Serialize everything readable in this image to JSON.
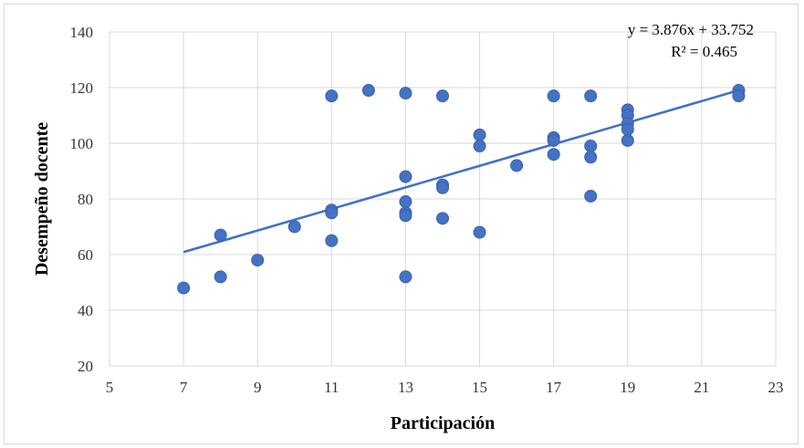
{
  "chart_data": {
    "type": "scatter",
    "title": "",
    "xlabel": "Participación",
    "ylabel": "Desempeño docente",
    "xlim": [
      5,
      23
    ],
    "ylim": [
      20,
      140
    ],
    "xticks": [
      5,
      7,
      9,
      11,
      13,
      15,
      17,
      19,
      21,
      23
    ],
    "yticks": [
      20,
      40,
      60,
      80,
      100,
      120,
      140
    ],
    "grid": "vertical-and-horizontal",
    "colors": {
      "points": "#4472c4",
      "trendline": "#4472c4",
      "grid": "#d9d9d9"
    },
    "points": [
      {
        "x": 7,
        "y": 48
      },
      {
        "x": 8,
        "y": 67
      },
      {
        "x": 8,
        "y": 52
      },
      {
        "x": 9,
        "y": 58
      },
      {
        "x": 10,
        "y": 70
      },
      {
        "x": 11,
        "y": 117
      },
      {
        "x": 11,
        "y": 76
      },
      {
        "x": 11,
        "y": 75
      },
      {
        "x": 11,
        "y": 65
      },
      {
        "x": 12,
        "y": 119
      },
      {
        "x": 13,
        "y": 118
      },
      {
        "x": 13,
        "y": 88
      },
      {
        "x": 13,
        "y": 79
      },
      {
        "x": 13,
        "y": 75
      },
      {
        "x": 13,
        "y": 74
      },
      {
        "x": 13,
        "y": 52
      },
      {
        "x": 14,
        "y": 117
      },
      {
        "x": 14,
        "y": 85
      },
      {
        "x": 14,
        "y": 84
      },
      {
        "x": 14,
        "y": 73
      },
      {
        "x": 15,
        "y": 103
      },
      {
        "x": 15,
        "y": 99
      },
      {
        "x": 15,
        "y": 68
      },
      {
        "x": 16,
        "y": 92
      },
      {
        "x": 17,
        "y": 117
      },
      {
        "x": 17,
        "y": 102
      },
      {
        "x": 17,
        "y": 101
      },
      {
        "x": 17,
        "y": 96
      },
      {
        "x": 18,
        "y": 117
      },
      {
        "x": 18,
        "y": 99
      },
      {
        "x": 18,
        "y": 95
      },
      {
        "x": 18,
        "y": 81
      },
      {
        "x": 19,
        "y": 112
      },
      {
        "x": 19,
        "y": 110
      },
      {
        "x": 19,
        "y": 107
      },
      {
        "x": 19,
        "y": 105
      },
      {
        "x": 19,
        "y": 101
      },
      {
        "x": 22,
        "y": 119
      },
      {
        "x": 22,
        "y": 117
      }
    ],
    "trendline": {
      "type": "linear",
      "slope": 3.876,
      "intercept": 33.752,
      "x_range": [
        7,
        22
      ],
      "equation_label": "y = 3.876x + 33.752",
      "r2_label": "R² = 0.465"
    }
  }
}
